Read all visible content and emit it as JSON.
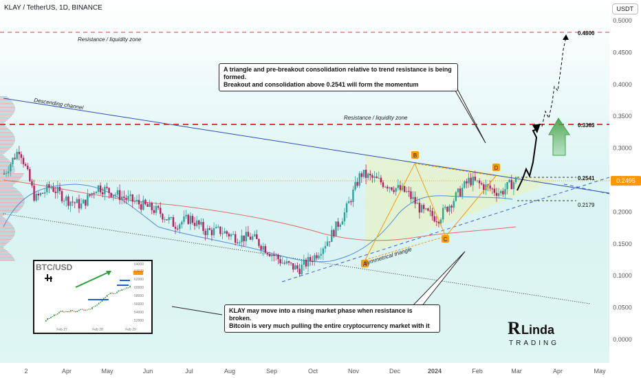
{
  "header": {
    "symbol_line": "KLAY / TetherUS, 1D, BINANCE",
    "currency_button": "USDT"
  },
  "colors": {
    "resistance_dash": "#e0333c",
    "channel_top": "#2b4bb0",
    "channel_bottom": "#333333",
    "ma_fast": "#4a90d9",
    "ma_slow": "#e26b6b",
    "triangle_fill": "#e6f2c6",
    "current_price_bg": "#ff9800",
    "candle_up": "#26a69a",
    "candle_down": "#c2185b",
    "pattern_point": "#f39c12",
    "projection_arrow": "#4caf50"
  },
  "annotations": {
    "resistance_top_label": "Resistance / liquidity zone",
    "resistance_mid_label": "Resistance / liquidity zone",
    "descending_channel_label": "Descending channel",
    "symmetrical_triangle_label": "Symmetrical triangle",
    "callout_top_line1": "A triangle and pre-breakout consolidation relative to trend resistance is being formed.",
    "callout_top_line2": "Breakout and consolidation above 0.2541 will form the momentum",
    "callout_bottom_line1": "KLAY may move into a rising market phase when resistance is broken.",
    "callout_bottom_line2": "Bitcoin is very much pulling the entire cryptocurrency market with it",
    "point_a": "A",
    "point_b": "B",
    "point_c": "C",
    "point_d": "D",
    "logo_line1": "Linda",
    "logo_line2": "TRADING"
  },
  "inset": {
    "title": "BTC/USD",
    "y_ticks": [
      "64000",
      "63029",
      "62000",
      "60000",
      "58000",
      "56000",
      "54000",
      "52000"
    ],
    "x_ticks": [
      "Feb 27",
      "Feb 28",
      "Feb 29"
    ],
    "current_value": "63029"
  },
  "chart_data": {
    "type": "candlestick",
    "symbol": "KLAY / TetherUS",
    "timeframe": "1D",
    "exchange": "BINANCE",
    "x_tick_labels": [
      "2",
      "Apr",
      "May",
      "Jun",
      "Jul",
      "Aug",
      "Sep",
      "Oct",
      "Nov",
      "Dec",
      "2024",
      "Feb",
      "Mar",
      "Apr",
      "May"
    ],
    "y_tick_labels": [
      "0.5000",
      "0.4500",
      "0.4000",
      "0.3500",
      "0.3000",
      "0.2500",
      "0.2000",
      "0.1500",
      "0.1000",
      "0.0500",
      "0.0000"
    ],
    "ylim": [
      0.0,
      0.5
    ],
    "current_price": "0.2495",
    "levels": [
      {
        "label": "0.4800",
        "value": 0.48
      },
      {
        "label": "0.3363",
        "value": 0.3363
      },
      {
        "label": "0.2541",
        "value": 0.2541
      },
      {
        "label": "0.2179",
        "value": 0.2179
      }
    ],
    "approx_close_series": [
      0.26,
      0.3,
      0.22,
      0.24,
      0.22,
      0.21,
      0.24,
      0.23,
      0.22,
      0.21,
      0.2,
      0.18,
      0.19,
      0.17,
      0.17,
      0.16,
      0.16,
      0.14,
      0.12,
      0.11,
      0.13,
      0.16,
      0.2,
      0.26,
      0.25,
      0.24,
      0.23,
      0.2,
      0.19,
      0.22,
      0.25,
      0.24,
      0.23,
      0.25
    ]
  }
}
